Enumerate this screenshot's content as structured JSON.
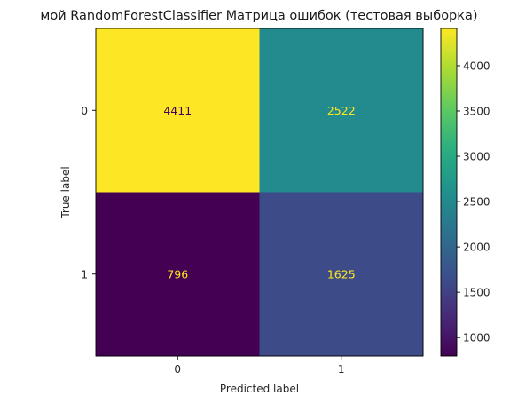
{
  "chart_data": {
    "type": "heatmap",
    "title": "мой RandomForestClassifier Матрица ошибок (тестовая выборка)",
    "xlabel": "Predicted label",
    "ylabel": "True label",
    "x_categories": [
      "0",
      "1"
    ],
    "y_categories": [
      "0",
      "1"
    ],
    "values": [
      [
        4411,
        2522
      ],
      [
        796,
        1625
      ]
    ],
    "colormap": "viridis",
    "colorbar": {
      "min": 796,
      "max": 4411,
      "ticks": [
        "1000",
        "1500",
        "2000",
        "2500",
        "3000",
        "3500",
        "4000"
      ]
    },
    "text_colors": {
      "on_light": "#440154",
      "on_dark": "#fde725"
    },
    "grid": false
  }
}
